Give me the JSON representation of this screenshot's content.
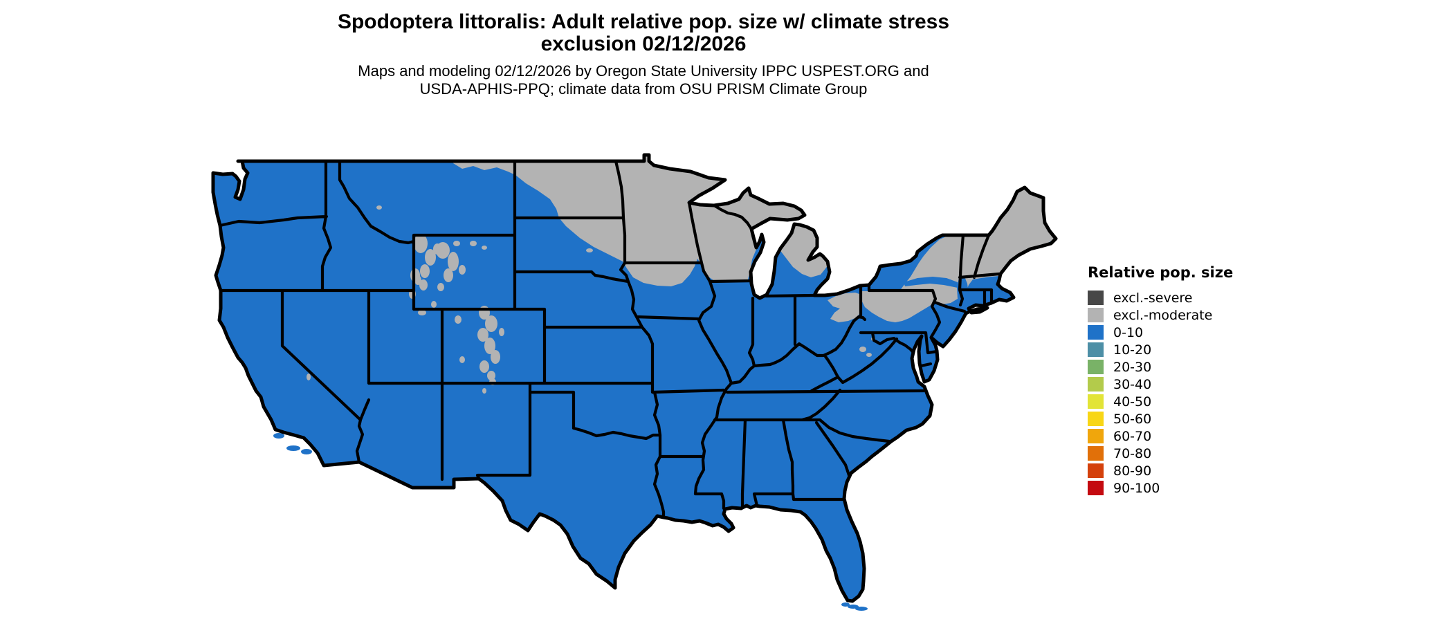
{
  "title": {
    "line1": "Spodoptera littoralis: Adult relative pop. size w/ climate stress",
    "line2": "exclusion 02/12/2026"
  },
  "subtitle": {
    "line1": "Maps and modeling 02/12/2026 by Oregon State University IPPC USPEST.ORG and",
    "line2": "USDA-APHIS-PPQ; climate data from OSU PRISM Climate Group"
  },
  "legend": {
    "title": "Relative pop. size",
    "items": [
      {
        "label": "excl.-severe",
        "color": "#474747"
      },
      {
        "label": "excl.-moderate",
        "color": "#B3B3B3"
      },
      {
        "label": "0-10",
        "color": "#1F72C8"
      },
      {
        "label": "10-20",
        "color": "#4D8FA6"
      },
      {
        "label": "20-30",
        "color": "#79B267"
      },
      {
        "label": "30-40",
        "color": "#B3CB4B"
      },
      {
        "label": "40-50",
        "color": "#E2E437"
      },
      {
        "label": "50-60",
        "color": "#F8D616"
      },
      {
        "label": "60-70",
        "color": "#F0A60C"
      },
      {
        "label": "70-80",
        "color": "#E17009"
      },
      {
        "label": "80-90",
        "color": "#D4410C"
      },
      {
        "label": "90-100",
        "color": "#C40A10"
      }
    ]
  },
  "map": {
    "description": "Conterminous US map; blue = relative pop. size 0-10 over most of country; gray = moderate climate-stress exclusion across northern tier (ND, MN, WI, MI, upstate NY, northern PA, northern New England) and mountain areas",
    "colors": {
      "background": "#FFFFFF",
      "base": "#1F72C8",
      "exclusion_moderate": "#B3B3B3",
      "border": "#000000"
    }
  }
}
